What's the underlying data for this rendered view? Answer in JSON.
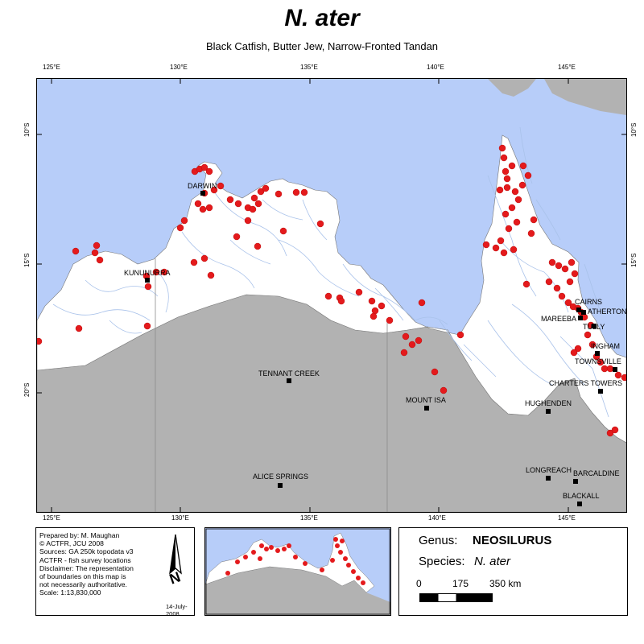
{
  "header": {
    "title": "N. ater",
    "subtitle": "Black Catfish, Butter Jew, Narrow-Fronted Tandan"
  },
  "graticule": {
    "longitudes": [
      "125°E",
      "130°E",
      "135°E",
      "140°E",
      "145°E"
    ],
    "latitudes": [
      "10°S",
      "15°S",
      "20°S"
    ]
  },
  "colors": {
    "sea": "#b7cdf9",
    "land_in_range": "#ffffff",
    "land_outside": "#b2b2b2",
    "rivers": "#a9c2ea",
    "records": "#e41a1c",
    "towns": "#000000"
  },
  "towns": [
    {
      "name": "DARWIN"
    },
    {
      "name": "KUNUNURRA"
    },
    {
      "name": "TENNANT CREEK"
    },
    {
      "name": "MOUNT ISA"
    },
    {
      "name": "ALICE SPRINGS"
    },
    {
      "name": "CAIRNS"
    },
    {
      "name": "ATHERTON"
    },
    {
      "name": "MAREEBA"
    },
    {
      "name": "TULLY"
    },
    {
      "name": "INGHAM"
    },
    {
      "name": "TOWNSVILLE"
    },
    {
      "name": "CHARTERS TOWERS"
    },
    {
      "name": "HUGHENDEN"
    },
    {
      "name": "LONGREACH"
    },
    {
      "name": "BARCALDINE"
    },
    {
      "name": "BLACKALL"
    }
  ],
  "credits": {
    "lines": [
      "Prepared by: M. Maughan",
      "© ACTFR, JCU 2008",
      "Sources: GA 250k topodata v3",
      "ACTFR - fish survey locations",
      "Disclaimer: The representation",
      "of boundaries on this map is",
      "not necessarily authoritative.",
      "Scale: 1:13,830,000"
    ],
    "date": "14-July-2008",
    "north_label": "N"
  },
  "legend": {
    "genus_label": "Genus:",
    "genus_value": "NEOSILURUS",
    "species_label": "Species:",
    "species_value": "N. ater",
    "scale_ticks": [
      "0",
      "175",
      "350 km"
    ]
  }
}
